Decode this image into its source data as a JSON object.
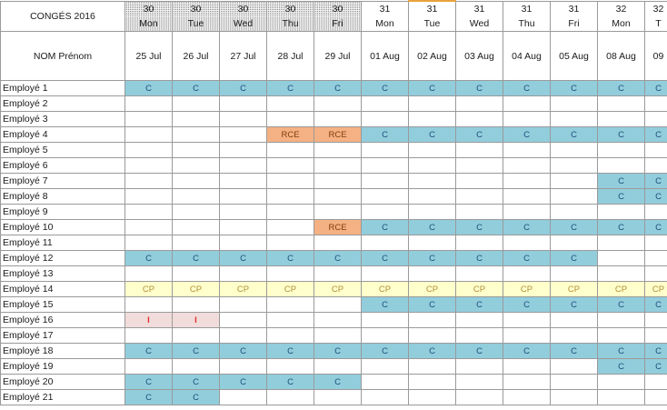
{
  "title": "CONGÉS 2016",
  "name_header": "NOM Prénom",
  "columns": [
    {
      "week": "30",
      "day": "Mon",
      "date": "25 Jul"
    },
    {
      "week": "30",
      "day": "Tue",
      "date": "26 Jul"
    },
    {
      "week": "30",
      "day": "Wed",
      "date": "27 Jul"
    },
    {
      "week": "30",
      "day": "Thu",
      "date": "28 Jul"
    },
    {
      "week": "30",
      "day": "Fri",
      "date": "29 Jul"
    },
    {
      "week": "31",
      "day": "Mon",
      "date": "01 Aug"
    },
    {
      "week": "31",
      "day": "Tue",
      "date": "02 Aug"
    },
    {
      "week": "31",
      "day": "Wed",
      "date": "03 Aug"
    },
    {
      "week": "31",
      "day": "Thu",
      "date": "04 Aug"
    },
    {
      "week": "31",
      "day": "Fri",
      "date": "05 Aug"
    },
    {
      "week": "32",
      "day": "Mon",
      "date": "08 Aug"
    },
    {
      "week": "32",
      "day": "T",
      "date": "09"
    }
  ],
  "legend_colors": {
    "C": "#92cddc",
    "RCE": "#f4b183",
    "CP": "#ffffcc",
    "I": "#f2dcdb"
  },
  "rows": [
    {
      "name": "Employé 1",
      "cells": [
        "C",
        "C",
        "C",
        "C",
        "C",
        "C",
        "C",
        "C",
        "C",
        "C",
        "C",
        "C"
      ]
    },
    {
      "name": "Employé 2",
      "cells": [
        "",
        "",
        "",
        "",
        "",
        "",
        "",
        "",
        "",
        "",
        "",
        ""
      ]
    },
    {
      "name": "Employé 3",
      "cells": [
        "",
        "",
        "",
        "",
        "",
        "",
        "",
        "",
        "",
        "",
        "",
        ""
      ]
    },
    {
      "name": "Employé 4",
      "cells": [
        "",
        "",
        "",
        "RCE",
        "RCE",
        "C",
        "C",
        "C",
        "C",
        "C",
        "C",
        "C"
      ]
    },
    {
      "name": "Employé 5",
      "cells": [
        "",
        "",
        "",
        "",
        "",
        "",
        "",
        "",
        "",
        "",
        "",
        ""
      ]
    },
    {
      "name": "Employé 6",
      "cells": [
        "",
        "",
        "",
        "",
        "",
        "",
        "",
        "",
        "",
        "",
        "",
        ""
      ]
    },
    {
      "name": "Employé 7",
      "cells": [
        "",
        "",
        "",
        "",
        "",
        "",
        "",
        "",
        "",
        "",
        "C",
        "C"
      ]
    },
    {
      "name": "Employé 8",
      "cells": [
        "",
        "",
        "",
        "",
        "",
        "",
        "",
        "",
        "",
        "",
        "C",
        "C"
      ]
    },
    {
      "name": "Employé 9",
      "cells": [
        "",
        "",
        "",
        "",
        "",
        "",
        "",
        "",
        "",
        "",
        "",
        ""
      ]
    },
    {
      "name": "Employé 10",
      "cells": [
        "",
        "",
        "",
        "",
        "RCE",
        "C",
        "C",
        "C",
        "C",
        "C",
        "C",
        "C"
      ]
    },
    {
      "name": "Employé 11",
      "cells": [
        "",
        "",
        "",
        "",
        "",
        "",
        "",
        "",
        "",
        "",
        "",
        ""
      ]
    },
    {
      "name": "Employé 12",
      "cells": [
        "C",
        "C",
        "C",
        "C",
        "C",
        "C",
        "C",
        "C",
        "C",
        "C",
        "",
        ""
      ]
    },
    {
      "name": "Employé 13",
      "cells": [
        "",
        "",
        "",
        "",
        "",
        "",
        "",
        "",
        "",
        "",
        "",
        ""
      ]
    },
    {
      "name": "Employé 14",
      "cells": [
        "CP",
        "CP",
        "CP",
        "CP",
        "CP",
        "CP",
        "CP",
        "CP",
        "CP",
        "CP",
        "CP",
        "CP"
      ]
    },
    {
      "name": "Employé 15",
      "cells": [
        "",
        "",
        "",
        "",
        "",
        "C",
        "C",
        "C",
        "C",
        "C",
        "C",
        "C"
      ]
    },
    {
      "name": "Employé 16",
      "cells": [
        "I",
        "I",
        "",
        "",
        "",
        "",
        "",
        "",
        "",
        "",
        "",
        ""
      ]
    },
    {
      "name": "Employé 17",
      "cells": [
        "",
        "",
        "",
        "",
        "",
        "",
        "",
        "",
        "",
        "",
        "",
        ""
      ]
    },
    {
      "name": "Employé 18",
      "cells": [
        "C",
        "C",
        "C",
        "C",
        "C",
        "C",
        "C",
        "C",
        "C",
        "C",
        "C",
        "C"
      ]
    },
    {
      "name": "Employé 19",
      "cells": [
        "",
        "",
        "",
        "",
        "",
        "",
        "",
        "",
        "",
        "",
        "C",
        "C"
      ]
    },
    {
      "name": "Employé 20",
      "cells": [
        "C",
        "C",
        "C",
        "C",
        "C",
        "",
        "",
        "",
        "",
        "",
        "",
        ""
      ]
    },
    {
      "name": "Employé 21",
      "cells": [
        "C",
        "C",
        "",
        "",
        "",
        "",
        "",
        "",
        "",
        "",
        "",
        ""
      ]
    }
  ]
}
